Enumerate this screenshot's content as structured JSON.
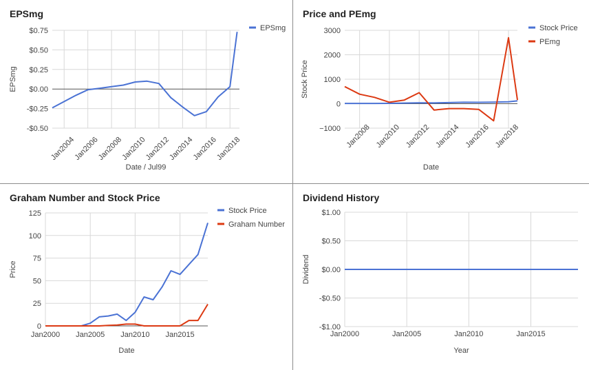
{
  "colors": {
    "blue": "#4a72d4",
    "red": "#dc3912",
    "grid": "#d8d8d8",
    "zero_line": "#555555",
    "text": "#444444"
  },
  "chart_data": [
    {
      "title": "EPSmg",
      "type": "line",
      "xlabel": "Date / Jul99",
      "ylabel": "EPSmg",
      "x_range": [
        2003,
        2018.8
      ],
      "ylim": [
        -0.5,
        0.75
      ],
      "yticks": [
        0.75,
        0.5,
        0.25,
        0.0,
        -0.25,
        -0.5
      ],
      "ytick_labels": [
        "$0.75",
        "$0.50",
        "$0.25",
        "$0.00",
        "-$0.25",
        "-$0.50"
      ],
      "xticks": [
        2004,
        2006,
        2008,
        2010,
        2012,
        2014,
        2016,
        2018
      ],
      "xtick_labels": [
        "Jan2004",
        "Jan2006",
        "Jan2008",
        "Jan2010",
        "Jan2012",
        "Jan2014",
        "Jan2016",
        "Jan2018"
      ],
      "xtick_rotate": true,
      "grid": true,
      "zero_line": true,
      "legend": "right",
      "series": [
        {
          "name": "EPSmg",
          "color": "#4a72d4",
          "x": [
            2003,
            2004,
            2005,
            2006,
            2007,
            2008,
            2009,
            2010,
            2011,
            2012,
            2013,
            2014,
            2015,
            2016,
            2017,
            2018,
            2018.6
          ],
          "y": [
            -0.24,
            -0.16,
            -0.08,
            -0.01,
            0.01,
            0.03,
            0.05,
            0.09,
            0.1,
            0.07,
            -0.11,
            -0.23,
            -0.34,
            -0.29,
            -0.1,
            0.03,
            0.73
          ]
        }
      ]
    },
    {
      "title": "Price and PEmg",
      "type": "line",
      "xlabel": "Date",
      "ylabel": "Stock Price",
      "x_range": [
        2007,
        2018.6
      ],
      "ylim": [
        -1000,
        3000
      ],
      "yticks": [
        3000,
        2000,
        1000,
        0,
        -1000
      ],
      "ytick_labels": [
        "3000",
        "2000",
        "1000",
        "0",
        "−1000"
      ],
      "xticks": [
        2008,
        2010,
        2012,
        2014,
        2016,
        2018
      ],
      "xtick_labels": [
        "Jan2008",
        "Jan2010",
        "Jan2012",
        "Jan2014",
        "Jan2016",
        "Jan2018"
      ],
      "xtick_rotate": true,
      "grid": true,
      "zero_line": true,
      "legend": "right",
      "series": [
        {
          "name": "Stock Price",
          "color": "#4a72d4",
          "x": [
            2007,
            2008,
            2009,
            2010,
            2011,
            2012,
            2013,
            2014,
            2015,
            2016,
            2017,
            2018,
            2018.6
          ],
          "y": [
            10,
            12,
            10,
            15,
            25,
            33,
            30,
            45,
            60,
            55,
            65,
            80,
            115
          ]
        },
        {
          "name": "PEmg",
          "color": "#dc3912",
          "x": [
            2007,
            2008,
            2009,
            2010,
            2011,
            2012,
            2013,
            2014,
            2015,
            2016,
            2017,
            2018,
            2018.6
          ],
          "y": [
            700,
            390,
            260,
            60,
            150,
            450,
            -260,
            -200,
            -200,
            -230,
            -700,
            2700,
            150
          ]
        }
      ]
    },
    {
      "title": "Graham Number and Stock Price",
      "type": "line",
      "xlabel": "Date",
      "ylabel": "Price",
      "x_range": [
        2000,
        2018.1
      ],
      "ylim": [
        0,
        125
      ],
      "yticks": [
        125,
        100,
        75,
        50,
        25,
        0
      ],
      "ytick_labels": [
        "125",
        "100",
        "75",
        "50",
        "25",
        "0"
      ],
      "xticks": [
        2000,
        2005,
        2010,
        2015
      ],
      "xtick_labels": [
        "Jan2000",
        "Jan2005",
        "Jan2010",
        "Jan2015"
      ],
      "xtick_rotate": false,
      "grid": true,
      "zero_line": true,
      "legend": "right",
      "series": [
        {
          "name": "Stock Price",
          "color": "#4a72d4",
          "x": [
            2000,
            2001,
            2002,
            2003,
            2004,
            2005,
            2006,
            2007,
            2008,
            2009,
            2010,
            2011,
            2012,
            2013,
            2014,
            2015,
            2016,
            2017,
            2018.1
          ],
          "y": [
            0,
            0,
            0,
            0,
            0,
            3,
            10,
            11,
            13,
            6,
            15,
            32,
            29,
            43,
            61,
            57,
            68,
            79,
            114
          ]
        },
        {
          "name": "Graham Number",
          "color": "#dc3912",
          "x": [
            2000,
            2001,
            2002,
            2003,
            2004,
            2005,
            2006,
            2007,
            2008,
            2009,
            2010,
            2011,
            2012,
            2013,
            2014,
            2015,
            2016,
            2017,
            2018.1
          ],
          "y": [
            0,
            0,
            0,
            0,
            0,
            0,
            0,
            0.5,
            1,
            2,
            2,
            0,
            0,
            0,
            0,
            0,
            6,
            6,
            24
          ]
        }
      ]
    },
    {
      "title": "Dividend History",
      "type": "line",
      "xlabel": "Year",
      "ylabel": "Dividend",
      "x_range": [
        2000,
        2018.8
      ],
      "ylim": [
        -1,
        1
      ],
      "yticks": [
        1,
        0.5,
        0,
        -0.5,
        -1
      ],
      "ytick_labels": [
        "$1.00",
        "$0.50",
        "$0.00",
        "-$0.50",
        "-$1.00"
      ],
      "xticks": [
        2000,
        2005,
        2010,
        2015
      ],
      "xtick_labels": [
        "Jan2000",
        "Jan2005",
        "Jan2010",
        "Jan2015"
      ],
      "xtick_rotate": false,
      "grid": true,
      "zero_line": false,
      "legend": "none",
      "series": [
        {
          "name": "",
          "color": "#4a72d4",
          "x": [
            2000,
            2018.8
          ],
          "y": [
            0,
            0
          ]
        }
      ]
    }
  ]
}
